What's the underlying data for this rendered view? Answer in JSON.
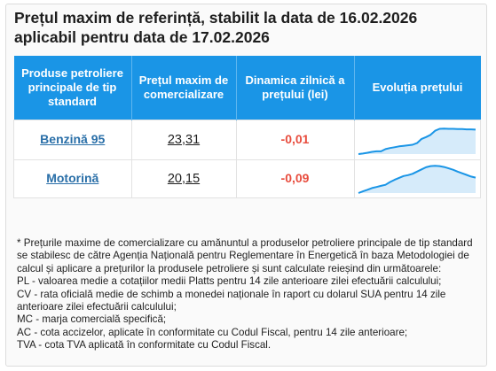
{
  "title": "Prețul maxim de referință, stabilit la data de 16.02.2026 aplicabil pentru data de 17.02.2026",
  "table": {
    "headers": [
      "Produse petroliere principale de tip standard",
      "Prețul maxim de comercializare",
      "Dinamica zilnică a prețului (lei)",
      "Evoluția prețului"
    ],
    "rows": [
      {
        "product": "Benzină 95",
        "price": "23,31",
        "delta": "-0,01",
        "trend": [
          0.0,
          0.02,
          0.05,
          0.08,
          0.1,
          0.1,
          0.18,
          0.22,
          0.25,
          0.28,
          0.3,
          0.32,
          0.34,
          0.4,
          0.55,
          0.62,
          0.7,
          0.85,
          0.92,
          0.93,
          0.92,
          0.92,
          0.91,
          0.91,
          0.9,
          0.9,
          0.89
        ]
      },
      {
        "product": "Motorină",
        "price": "20,15",
        "delta": "-0,09",
        "trend": [
          0.0,
          0.06,
          0.12,
          0.18,
          0.22,
          0.26,
          0.3,
          0.4,
          0.48,
          0.55,
          0.62,
          0.65,
          0.7,
          0.78,
          0.86,
          0.94,
          0.98,
          0.99,
          0.98,
          0.95,
          0.9,
          0.85,
          0.78,
          0.72,
          0.66,
          0.6,
          0.56
        ]
      }
    ]
  },
  "notes": [
    "* Prețurile maxime de comercializare cu amănuntul a produselor petroliere principale de tip standard se stabilesc de către Agenția Națională pentru Reglementare în Energetică în baza Metodologiei de calcul și aplicare a prețurilor la produsele petroliere și sunt calculate reieșind din următoarele:",
    "PL - valoarea medie a cotațiilor medii Platts pentru 14 zile anterioare zilei efectuării calculului;",
    "CV - rata oficială medie de schimb a monedei naționale în raport cu dolarul SUA pentru 14 zile anterioare zilei efectuării calculului;",
    "MC - marja comercială specifică;",
    "AC - cota accizelor, aplicate în conformitate cu Codul Fiscal, pentru 14 zile anterioare;",
    "TVA - cota TVA aplicată în conformitate cu Codul Fiscal."
  ],
  "colors": {
    "header_bg": "#1a95e6",
    "link": "#2a6fa8",
    "delta": "#e84c3d",
    "trend_line": "#1a95e6",
    "trend_fill": "#d6ebfa"
  }
}
